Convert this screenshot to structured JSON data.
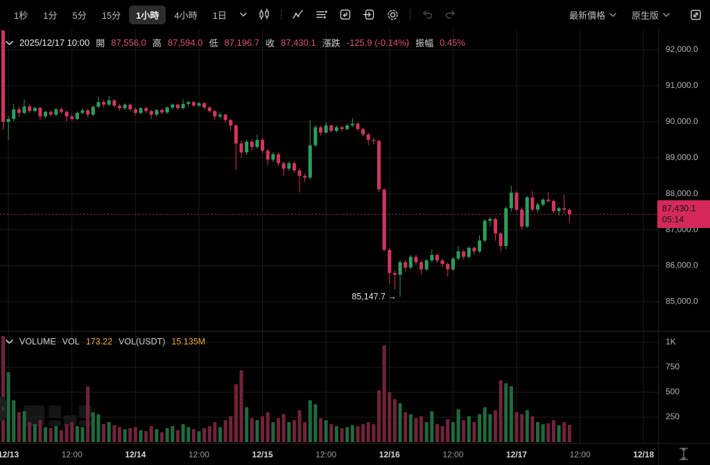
{
  "toolbar": {
    "timeframes": [
      {
        "label": "1秒",
        "active": false
      },
      {
        "label": "1分",
        "active": false
      },
      {
        "label": "5分",
        "active": false
      },
      {
        "label": "15分",
        "active": false
      },
      {
        "label": "1小時",
        "active": true
      },
      {
        "label": "4小時",
        "active": false
      },
      {
        "label": "1日",
        "active": false
      }
    ],
    "icons": [
      "timeframe-chevron-icon",
      "candle-style-icon",
      "indicators-icon",
      "display-settings-icon",
      "replay-icon",
      "screenshot-icon",
      "settings-gear-icon",
      "undo-icon",
      "redo-icon"
    ],
    "right": {
      "latest_price_label": "最新價格",
      "version_label": "原生版",
      "expand_icon": "fullscreen-expand-icon"
    }
  },
  "ohlc_bar": {
    "datetime": "2025/12/17 10:00",
    "open_label": "開",
    "open": "87,556.0",
    "high_label": "高",
    "high": "87,594.0",
    "low_label": "低",
    "low": "87,196.7",
    "close_label": "收",
    "close": "87,430.1",
    "change_label": "漲跌",
    "change": "-125.9 (-0.14%)",
    "amplitude_label": "振幅",
    "amplitude": "0.45%"
  },
  "volume_bar": {
    "title": "VOLUME",
    "vol_label": "VOL",
    "vol": "173.22",
    "vol_usdt_label": "VOL(USDT)",
    "vol_usdt": "15.135M"
  },
  "price_axis": {
    "ticks": [
      {
        "label": "92,000.0",
        "value": 92000
      },
      {
        "label": "91,000.0",
        "value": 91000
      },
      {
        "label": "90,000.0",
        "value": 90000
      },
      {
        "label": "89,000.0",
        "value": 89000
      },
      {
        "label": "88,000.0",
        "value": 88000
      },
      {
        "label": "87,000.0",
        "value": 87000
      },
      {
        "label": "86,000.0",
        "value": 86000
      },
      {
        "label": "85,000.0",
        "value": 85000
      }
    ],
    "current_price_label": "87,430.1",
    "countdown": "05:14"
  },
  "volume_axis": {
    "ticks": [
      {
        "label": "1K",
        "value": 1000
      },
      {
        "label": "750",
        "value": 750
      },
      {
        "label": "500",
        "value": 500
      },
      {
        "label": "250",
        "value": 250
      }
    ]
  },
  "time_axis": {
    "ticks": [
      {
        "label": "12/13",
        "index": 1,
        "major": true
      },
      {
        "label": "12:00",
        "index": 13,
        "major": false
      },
      {
        "label": "12/14",
        "index": 25,
        "major": true
      },
      {
        "label": "12:00",
        "index": 37,
        "major": false
      },
      {
        "label": "12/15",
        "index": 49,
        "major": true
      },
      {
        "label": "12:00",
        "index": 61,
        "major": false
      },
      {
        "label": "12/16",
        "index": 73,
        "major": true
      },
      {
        "label": "12:00",
        "index": 85,
        "major": false
      },
      {
        "label": "12/17",
        "index": 97,
        "major": true
      },
      {
        "label": "12:00",
        "index": 109,
        "major": false
      },
      {
        "label": "12/18",
        "index": 121,
        "major": true
      }
    ]
  },
  "annotations": {
    "low_label": "85,147.7 →"
  },
  "colors": {
    "up": "#2d9e5c",
    "down": "#d23560",
    "vol_up": "#1f6a3d",
    "vol_down": "#722339",
    "accent_pink": "#d5295b",
    "value_pink": "#df5277",
    "value_orange": "#eca93c",
    "grid": "#1d1d1d",
    "axis_text": "#b5b5b5"
  },
  "chart_data": {
    "type": "candlestick",
    "interval": "1小時",
    "pair_unit": "USDT",
    "price_range_shown": [
      85000,
      92000
    ],
    "volume_range_shown": [
      0,
      1000
    ],
    "current": {
      "price": 87430.1,
      "countdown": "05:14"
    },
    "low_annotation": {
      "index": 75,
      "price": 85147.7
    },
    "candles_format": [
      "open",
      "high",
      "low",
      "close",
      "volume"
    ],
    "candles": [
      [
        92600,
        92600,
        89780,
        90000,
        1350
      ],
      [
        90000,
        90160,
        89500,
        90080,
        700
      ],
      [
        90080,
        90500,
        90020,
        90350,
        420
      ],
      [
        90350,
        90430,
        90150,
        90250,
        300
      ],
      [
        90250,
        90620,
        90200,
        90430,
        310
      ],
      [
        90430,
        90480,
        90250,
        90300,
        200
      ],
      [
        90300,
        90420,
        90260,
        90390,
        180
      ],
      [
        90390,
        90410,
        90050,
        90150,
        220
      ],
      [
        90150,
        90300,
        90100,
        90280,
        150
      ],
      [
        90280,
        90320,
        90150,
        90200,
        140
      ],
      [
        90200,
        90390,
        90160,
        90350,
        160
      ],
      [
        90350,
        90400,
        90230,
        90280,
        120
      ],
      [
        90280,
        90310,
        90000,
        90150,
        180
      ],
      [
        90150,
        90220,
        90020,
        90080,
        200
      ],
      [
        90080,
        90290,
        90050,
        90250,
        160
      ],
      [
        90250,
        90380,
        90200,
        90320,
        150
      ],
      [
        90320,
        90360,
        90120,
        90200,
        560
      ],
      [
        90200,
        90460,
        90160,
        90420,
        300
      ],
      [
        90420,
        90700,
        90380,
        90550,
        280
      ],
      [
        90550,
        90610,
        90400,
        90480,
        180
      ],
      [
        90480,
        90720,
        90440,
        90600,
        200
      ],
      [
        90600,
        90640,
        90400,
        90450,
        170
      ],
      [
        90450,
        90500,
        90300,
        90380,
        150
      ],
      [
        90380,
        90520,
        90330,
        90480,
        130
      ],
      [
        90480,
        90510,
        90300,
        90350,
        140
      ],
      [
        90350,
        90400,
        90180,
        90250,
        150
      ],
      [
        90250,
        90410,
        90200,
        90380,
        120
      ],
      [
        90380,
        90420,
        90250,
        90300,
        110
      ],
      [
        90300,
        90340,
        90080,
        90200,
        160
      ],
      [
        90200,
        90360,
        90150,
        90330,
        130
      ],
      [
        90330,
        90370,
        90210,
        90260,
        100
      ],
      [
        90260,
        90430,
        90220,
        90400,
        140
      ],
      [
        90400,
        90520,
        90350,
        90480,
        160
      ],
      [
        90480,
        90510,
        90330,
        90380,
        120
      ],
      [
        90380,
        90620,
        90340,
        90500,
        180
      ],
      [
        90500,
        90590,
        90430,
        90550,
        150
      ],
      [
        90550,
        90580,
        90400,
        90450,
        130
      ],
      [
        90450,
        90560,
        90410,
        90520,
        110
      ],
      [
        90520,
        90550,
        90350,
        90400,
        140
      ],
      [
        90400,
        90440,
        90250,
        90300,
        160
      ],
      [
        90300,
        90330,
        90050,
        90150,
        200
      ],
      [
        90150,
        90260,
        90090,
        90200,
        150
      ],
      [
        90200,
        90230,
        89980,
        90050,
        220
      ],
      [
        90050,
        90090,
        89750,
        89900,
        260
      ],
      [
        89900,
        89940,
        88660,
        89400,
        580
      ],
      [
        89400,
        89480,
        89000,
        89150,
        720
      ],
      [
        89150,
        89500,
        89080,
        89450,
        350
      ],
      [
        89450,
        89520,
        89220,
        89300,
        240
      ],
      [
        89300,
        89650,
        89250,
        89500,
        220
      ],
      [
        89500,
        89560,
        89120,
        89200,
        260
      ],
      [
        89200,
        89240,
        88800,
        88950,
        300
      ],
      [
        88950,
        89160,
        88880,
        89100,
        200
      ],
      [
        89100,
        89140,
        88780,
        88850,
        240
      ],
      [
        88850,
        88900,
        88500,
        88700,
        280
      ],
      [
        88700,
        88900,
        88640,
        88850,
        200
      ],
      [
        88850,
        88890,
        88580,
        88650,
        220
      ],
      [
        88650,
        88700,
        88040,
        88500,
        320
      ],
      [
        88500,
        88560,
        88330,
        88450,
        200
      ],
      [
        88450,
        90050,
        88400,
        89350,
        420
      ],
      [
        89350,
        89920,
        89300,
        89850,
        380
      ],
      [
        89850,
        89890,
        89620,
        89700,
        240
      ],
      [
        89700,
        90000,
        89660,
        89900,
        220
      ],
      [
        89900,
        89930,
        89700,
        89750,
        180
      ],
      [
        89750,
        89900,
        89710,
        89850,
        160
      ],
      [
        89850,
        89880,
        89720,
        89800,
        140
      ],
      [
        89800,
        89950,
        89760,
        89900,
        150
      ],
      [
        89900,
        90100,
        89860,
        89950,
        170
      ],
      [
        89950,
        89990,
        89750,
        89800,
        160
      ],
      [
        89800,
        89840,
        89600,
        89650,
        180
      ],
      [
        89650,
        89700,
        89350,
        89500,
        200
      ],
      [
        89500,
        89560,
        89380,
        89470,
        180
      ],
      [
        89470,
        89510,
        88050,
        88120,
        520
      ],
      [
        88120,
        88160,
        86400,
        86440,
        970
      ],
      [
        86440,
        86500,
        85500,
        85800,
        500
      ],
      [
        85800,
        85880,
        85350,
        85750,
        430
      ],
      [
        85750,
        86160,
        85148,
        86100,
        390
      ],
      [
        86100,
        86150,
        85850,
        85950,
        300
      ],
      [
        85950,
        86300,
        85900,
        86250,
        280
      ],
      [
        86250,
        86300,
        86020,
        86100,
        240
      ],
      [
        86100,
        86140,
        85750,
        85900,
        260
      ],
      [
        85900,
        86200,
        85860,
        86150,
        200
      ],
      [
        86150,
        86450,
        86100,
        86300,
        310
      ],
      [
        86300,
        86340,
        86080,
        86150,
        180
      ],
      [
        86150,
        86190,
        85950,
        86050,
        160
      ],
      [
        86050,
        86090,
        85700,
        85900,
        230
      ],
      [
        85900,
        86250,
        85860,
        86200,
        200
      ],
      [
        86200,
        86550,
        86150,
        86400,
        330
      ],
      [
        86400,
        86450,
        86180,
        86250,
        220
      ],
      [
        86250,
        86550,
        86200,
        86500,
        260
      ],
      [
        86500,
        86540,
        86300,
        86400,
        200
      ],
      [
        86400,
        86850,
        86350,
        86700,
        280
      ],
      [
        86700,
        87300,
        86650,
        87250,
        350
      ],
      [
        87250,
        87350,
        87080,
        87300,
        280
      ],
      [
        87300,
        87340,
        86700,
        86900,
        320
      ],
      [
        86900,
        86950,
        86400,
        86550,
        620
      ],
      [
        86550,
        87650,
        86460,
        87600,
        590
      ],
      [
        87600,
        88230,
        87500,
        88030,
        560
      ],
      [
        88030,
        88080,
        87500,
        87560,
        300
      ],
      [
        87560,
        87620,
        87000,
        87090,
        280
      ],
      [
        87090,
        87950,
        87050,
        87900,
        320
      ],
      [
        87900,
        88080,
        87500,
        87560,
        260
      ],
      [
        87560,
        87760,
        87480,
        87700,
        200
      ],
      [
        87700,
        87880,
        87650,
        87840,
        180
      ],
      [
        87840,
        88050,
        87740,
        87800,
        190
      ],
      [
        87800,
        87850,
        87460,
        87520,
        220
      ],
      [
        87520,
        87640,
        87400,
        87600,
        170
      ],
      [
        87600,
        87980,
        87440,
        87560,
        200
      ],
      [
        87556.0,
        87594.0,
        87196.7,
        87430.1,
        173
      ]
    ]
  }
}
